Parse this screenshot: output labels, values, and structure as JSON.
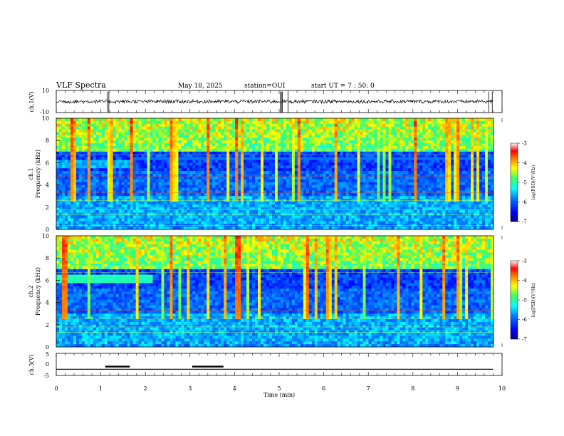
{
  "header": {
    "title": "VLF Spectra",
    "date": "May 18, 2025",
    "station": "station=OUI",
    "start": "start UT =  7 : 50: 0"
  },
  "chart_data": [
    {
      "type": "line",
      "panel": "ch1-waveform",
      "ylabel": "ch.1(V)",
      "ylim": [
        -10,
        10
      ],
      "yticks": [
        "10",
        "-10"
      ],
      "xlim": [
        0,
        10
      ],
      "baseline": 0,
      "spikes_min": [
        1.15,
        1.18,
        5.03,
        5.05,
        5.07,
        5.2,
        9.7,
        9.78
      ]
    },
    {
      "type": "heatmap",
      "panel": "ch1-spectrogram",
      "ylabel": "ch.1\nFrequency (kHz)",
      "ylim": [
        0,
        10
      ],
      "yticks": [
        "0",
        "2",
        "4",
        "6",
        "8",
        "10"
      ],
      "xlim": [
        0,
        10
      ],
      "colorbar": {
        "label": "log(PSD)(V²/Hz)",
        "range": [
          -7,
          -3
        ],
        "ticks": [
          "-3",
          "-4",
          "-5",
          "-6",
          "-7"
        ]
      }
    },
    {
      "type": "heatmap",
      "panel": "ch2-spectrogram",
      "ylabel": "ch.2\nFrequency (kHz)",
      "ylim": [
        0,
        10
      ],
      "yticks": [
        "0",
        "2",
        "4",
        "6",
        "8",
        "10"
      ],
      "xlim": [
        0,
        10
      ],
      "colorbar": {
        "label": "log(PSD)(V²/Hz)",
        "range": [
          -7,
          -3
        ],
        "ticks": [
          "-3",
          "-4",
          "-5",
          "-6",
          "-7"
        ]
      }
    },
    {
      "type": "line",
      "panel": "ch3-status",
      "ylabel": "ch.3(V)",
      "ylim": [
        -5,
        5
      ],
      "yticks": [
        "5",
        "0",
        "-5"
      ],
      "xlim": [
        0,
        10
      ],
      "xticks": [
        "0",
        "1",
        "2",
        "3",
        "4",
        "5",
        "6",
        "7",
        "8",
        "9",
        "10"
      ],
      "xlabel": "Time (min)",
      "baseline": -2.2,
      "high_segments_min": [
        [
          1.1,
          1.65
        ],
        [
          3.05,
          3.75
        ]
      ]
    }
  ],
  "colors": {
    "axis": "#000000",
    "colormap": [
      "#0000a0",
      "#0000ff",
      "#00a0ff",
      "#00ffff",
      "#40ff80",
      "#ffff00",
      "#ff8000",
      "#ff0000",
      "#ffffff"
    ]
  }
}
